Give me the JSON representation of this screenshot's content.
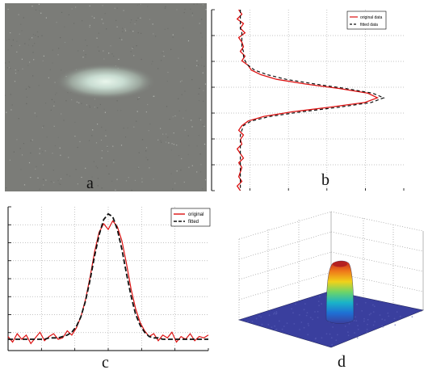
{
  "panels": {
    "a": {
      "label": "a"
    },
    "b": {
      "label": "b"
    },
    "c": {
      "label": "c"
    },
    "d": {
      "label": "d"
    }
  },
  "chart_data": [
    {
      "panel": "b",
      "type": "line",
      "orientation": "vertical",
      "legend": {
        "position": "top-right"
      },
      "grid": true,
      "series": [
        {
          "name": "original data",
          "color": "#dd1111",
          "style": "solid",
          "values": [
            0.08,
            0.1,
            0.07,
            0.11,
            0.09,
            0.12,
            0.08,
            0.1,
            0.11,
            0.09,
            0.12,
            0.1,
            0.14,
            0.16,
            0.22,
            0.32,
            0.5,
            0.72,
            0.9,
            0.96,
            0.88,
            0.66,
            0.42,
            0.24,
            0.14,
            0.1,
            0.08,
            0.11,
            0.09,
            0.1,
            0.07,
            0.09,
            0.11,
            0.08,
            0.1,
            0.09,
            0.08,
            0.1,
            0.07,
            0.09
          ]
        },
        {
          "name": "fitted data",
          "color": "#111111",
          "style": "dashed",
          "values": [
            0.09,
            0.09,
            0.09,
            0.09,
            0.09,
            0.1,
            0.1,
            0.1,
            0.1,
            0.11,
            0.11,
            0.12,
            0.14,
            0.18,
            0.26,
            0.38,
            0.56,
            0.76,
            0.93,
            1.0,
            0.92,
            0.72,
            0.48,
            0.28,
            0.16,
            0.11,
            0.1,
            0.09,
            0.09,
            0.09,
            0.09,
            0.09,
            0.09,
            0.09,
            0.09,
            0.09,
            0.09,
            0.09,
            0.09,
            0.09
          ]
        }
      ]
    },
    {
      "panel": "c",
      "type": "line",
      "legend": {
        "position": "top-right"
      },
      "grid": true,
      "series": [
        {
          "name": "original",
          "color": "#dd1111",
          "style": "solid",
          "values": [
            0.1,
            0.06,
            0.12,
            0.08,
            0.11,
            0.05,
            0.09,
            0.13,
            0.07,
            0.1,
            0.12,
            0.08,
            0.09,
            0.14,
            0.11,
            0.16,
            0.24,
            0.36,
            0.52,
            0.7,
            0.84,
            0.9,
            0.86,
            0.92,
            0.88,
            0.78,
            0.62,
            0.44,
            0.3,
            0.2,
            0.14,
            0.1,
            0.12,
            0.07,
            0.11,
            0.09,
            0.13,
            0.06,
            0.1,
            0.08,
            0.12,
            0.07,
            0.1,
            0.09,
            0.11
          ]
        },
        {
          "name": "fitted",
          "color": "#111111",
          "style": "dashed",
          "values": [
            0.08,
            0.08,
            0.08,
            0.08,
            0.08,
            0.08,
            0.08,
            0.08,
            0.08,
            0.09,
            0.09,
            0.09,
            0.1,
            0.11,
            0.13,
            0.17,
            0.24,
            0.35,
            0.5,
            0.67,
            0.82,
            0.93,
            0.97,
            0.95,
            0.86,
            0.72,
            0.55,
            0.39,
            0.26,
            0.18,
            0.13,
            0.1,
            0.09,
            0.09,
            0.08,
            0.08,
            0.08,
            0.08,
            0.08,
            0.08,
            0.08,
            0.08,
            0.08,
            0.08,
            0.08
          ]
        }
      ]
    },
    {
      "panel": "d",
      "type": "surface",
      "colormap": [
        "#3a3f9e",
        "#1f6fd4",
        "#19b3c9",
        "#6bd46a",
        "#f0d21a",
        "#ef7a1a",
        "#c21f1f"
      ]
    }
  ]
}
